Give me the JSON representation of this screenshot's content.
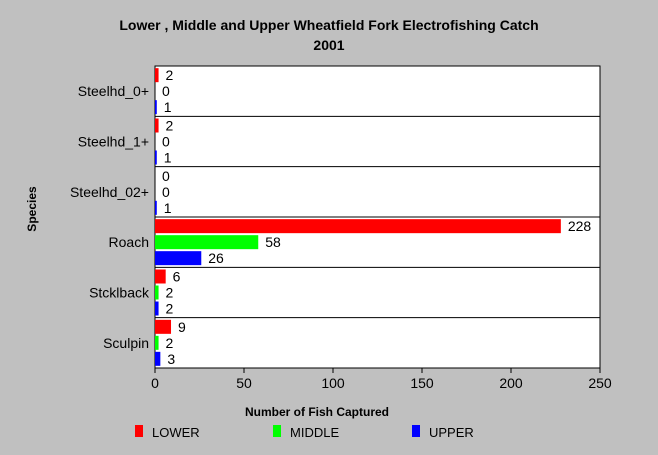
{
  "chart_data": {
    "type": "bar",
    "orientation": "horizontal",
    "title": "Lower , Middle and Upper Wheatfield Fork Electrofishing Catch",
    "subtitle": "2001",
    "xlabel": "Number of Fish Captured",
    "ylabel": "Species",
    "xlim": [
      0,
      250
    ],
    "xticks": [
      0,
      50,
      100,
      150,
      200,
      250
    ],
    "categories": [
      "Steelhd_0+",
      "Steelhd_1+",
      "Steelhd_02+",
      "Roach",
      "Stcklback",
      "Sculpin"
    ],
    "series": [
      {
        "name": "LOWER",
        "color": "#ff0000",
        "values": [
          2,
          2,
          0,
          228,
          6,
          9
        ]
      },
      {
        "name": "MIDDLE",
        "color": "#00ff00",
        "values": [
          0,
          0,
          0,
          58,
          2,
          2
        ]
      },
      {
        "name": "UPPER",
        "color": "#0000ff",
        "values": [
          1,
          1,
          1,
          26,
          2,
          3
        ]
      }
    ],
    "legend_position": "bottom",
    "grid": false
  }
}
